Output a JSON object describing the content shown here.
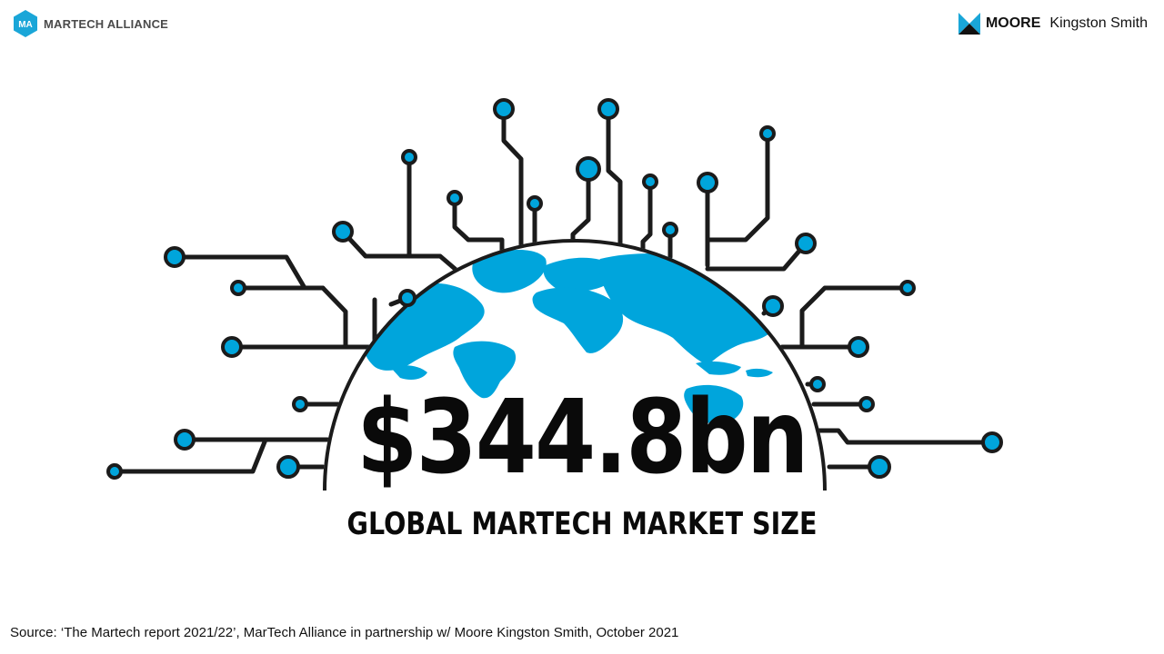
{
  "header": {
    "left_logo": {
      "initials": "MA",
      "name": "MARTECH ALLIANCE",
      "icon": "hexagon-logo-icon",
      "color": "#1aa6d8"
    },
    "right_logo": {
      "bold": "MOORE",
      "regular": "Kingston Smith",
      "icon": "moore-mark-icon",
      "color": "#1aa6d8"
    }
  },
  "main": {
    "value": "$344.8bn",
    "label": "GLOBAL MARTECH MARKET SIZE",
    "globe_icon": "globe-icon",
    "circuit_icon": "circuit-lines-icon",
    "colors": {
      "accent": "#00a5dc",
      "line": "#1b1b1b"
    }
  },
  "footer": {
    "source": "Source: ‘The Martech report 2021/22’, MarTech Alliance in partnership w/ Moore Kingston Smith, October 2021"
  }
}
